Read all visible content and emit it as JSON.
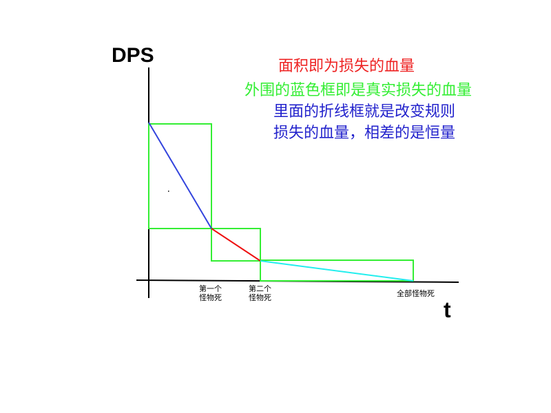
{
  "axes": {
    "y_label": "DPS",
    "x_label": "t"
  },
  "notes": {
    "line1": "面积即为损失的血量",
    "line2": "外围的蓝色框即是真实损失的血量",
    "line3": "里面的折线框就是改变规则",
    "line4": "损失的血量，相差的是恒量"
  },
  "ticks": {
    "first_death_line1": "第一个",
    "first_death_line2": "怪物死",
    "second_death_line1": "第二个",
    "second_death_line2": "怪物死",
    "all_death": "全部怪物死"
  },
  "colors": {
    "axis": "#000000",
    "box": "#33ee33",
    "segment1": "#3344dd",
    "segment2": "#ee1111",
    "segment3": "#22eeee",
    "note_red": "#ee2222",
    "note_green": "#33ee33",
    "note_blue": "#2222cc"
  }
}
